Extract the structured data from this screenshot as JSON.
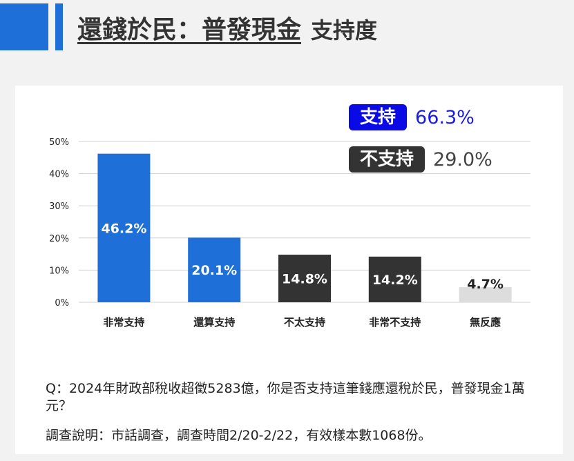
{
  "header": {
    "title_main": "還錢於民：普發現金",
    "title_sub": "支持度",
    "accent_color": "#1f6fd8"
  },
  "summary": [
    {
      "label": "支持",
      "value": "66.3%",
      "badge_color": "#0a0ae6",
      "value_color": "#1a1ae6"
    },
    {
      "label": "不支持",
      "value": "29.0%",
      "badge_color": "#333333",
      "value_color": "#444444"
    }
  ],
  "chart_data": {
    "type": "bar",
    "categories": [
      "非常支持",
      "還算支持",
      "不太支持",
      "非常不支持",
      "無反應"
    ],
    "values": [
      46.2,
      20.1,
      14.8,
      14.2,
      4.7
    ],
    "data_labels": [
      "46.2%",
      "20.1%",
      "14.8%",
      "14.2%",
      "4.7%"
    ],
    "colors": [
      "#1f6fd8",
      "#1f6fd8",
      "#333333",
      "#333333",
      "#dddddd"
    ],
    "label_colors": [
      "#ffffff",
      "#ffffff",
      "#ffffff",
      "#ffffff",
      "#222222"
    ],
    "yticks": [
      0,
      10,
      20,
      30,
      40,
      50
    ],
    "ytick_labels": [
      "0%",
      "10%",
      "20%",
      "30%",
      "40%",
      "50%"
    ],
    "ylim": [
      0,
      50
    ],
    "grid": true,
    "title": "",
    "xlabel": "",
    "ylabel": ""
  },
  "footer": {
    "question": "Q：2024年財政部稅收超徵5283億，你是否支持這筆錢應還稅於民，普發現金1萬元？",
    "survey_note": "調查說明：市話調查，調查時間2/20-2/22，有效樣本數1068份。"
  }
}
